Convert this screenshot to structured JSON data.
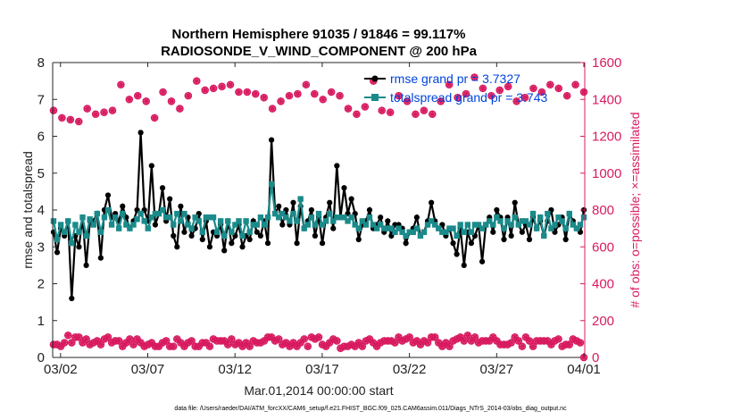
{
  "chart_data": {
    "type": "line",
    "title_line1": "Northern Hemisphere 91035 / 91846 = 99.117%",
    "title_line2": "RADIOSONDE_V_WIND_COMPONENT @ 200 hPa",
    "xlabel": "Mar.01,2014 00:00:00 start",
    "ylabel_left": "rmse and totalspread",
    "ylabel_right": "# of obs: o=possible; ×=assimilated",
    "footnote": "data file: /Users/raeder/DAI/ATM_forcXX/CAM6_setup/f.e21.FHIST_BGC.f09_025.CAM6assim.011/Diags_NTrS_2014-03/obs_diag_output.nc",
    "xlim": [
      0.55,
      31.05
    ],
    "ylim_left": [
      0,
      8
    ],
    "ylim_right": [
      0,
      1600
    ],
    "x_ticks": [
      1,
      6,
      11,
      16,
      21,
      26,
      31
    ],
    "x_tick_labels": [
      "03/02",
      "03/07",
      "03/12",
      "03/17",
      "03/22",
      "03/27",
      "04/01"
    ],
    "y_ticks_left": [
      "0",
      "1",
      "2",
      "3",
      "4",
      "5",
      "6",
      "7",
      "8"
    ],
    "y_ticks_right": [
      "0",
      "200",
      "400",
      "600",
      "800",
      "1000",
      "1200",
      "1400",
      "1600"
    ],
    "legend": {
      "rmse_label": "rmse grand pr = 3.7327",
      "spread_label": "totalspread grand pr = 3.743",
      "placement": "top-right"
    },
    "colors": {
      "rmse": "#000000",
      "spread": "#1a8a8a",
      "obs": "#d81b60",
      "legend_text": "#0044dd"
    },
    "series": [
      {
        "name": "rmse",
        "axis": "left",
        "values": [
          3.4,
          2.85,
          3.5,
          3.3,
          3.7,
          1.6,
          3.3,
          3.0,
          3.8,
          2.5,
          3.7,
          3.7,
          3.9,
          2.7,
          4.0,
          4.4,
          3.8,
          3.9,
          3.7,
          4.1,
          3.8,
          3.5,
          3.7,
          4.0,
          6.1,
          4.0,
          3.7,
          5.2,
          3.6,
          3.9,
          4.6,
          3.7,
          4.3,
          3.3,
          3.0,
          4.1,
          3.4,
          3.8,
          3.3,
          3.5,
          3.9,
          3.2,
          3.7,
          3.0,
          3.4,
          3.3,
          3.6,
          2.9,
          3.7,
          3.1,
          3.3,
          3.6,
          3.0,
          3.3,
          3.2,
          3.7,
          3.4,
          3.3,
          3.7,
          3.1,
          5.9,
          3.9,
          4.1,
          3.6,
          4.0,
          3.6,
          4.2,
          3.1,
          4.1,
          3.5,
          3.7,
          4.0,
          3.3,
          3.8,
          3.1,
          3.8,
          4.2,
          3.5,
          5.2,
          3.8,
          4.6,
          3.9,
          4.3,
          3.9,
          3.2,
          3.6,
          3.7,
          4.0,
          3.5,
          3.6,
          3.8,
          3.4,
          3.7,
          3.3,
          3.6,
          3.6,
          3.5,
          3.1,
          3.4,
          3.5,
          3.8,
          3.3,
          3.4,
          3.7,
          4.2,
          3.7,
          3.5,
          3.6,
          3.3,
          3.5,
          3.1,
          2.8,
          3.5,
          2.5,
          3.4,
          3.1,
          3.3,
          3.6,
          2.6,
          3.6,
          3.8,
          3.4,
          4.0,
          3.8,
          3.2,
          3.8,
          3.3,
          4.2,
          3.6,
          3.4,
          3.6,
          3.2,
          3.8,
          3.5,
          3.7,
          3.3,
          3.7,
          4.0,
          3.4,
          3.6,
          3.8,
          3.2,
          3.9,
          3.7,
          3.5,
          3.4,
          4.0
        ]
      },
      {
        "name": "totalspread",
        "axis": "left",
        "values": [
          3.7,
          3.2,
          3.6,
          3.4,
          3.7,
          3.1,
          3.6,
          3.4,
          3.8,
          3.3,
          3.75,
          3.6,
          3.9,
          3.4,
          3.8,
          4.0,
          3.6,
          3.8,
          3.5,
          3.9,
          3.6,
          3.5,
          3.6,
          3.75,
          3.9,
          3.7,
          3.5,
          3.8,
          3.9,
          3.9,
          4.0,
          3.8,
          3.8,
          3.6,
          3.9,
          3.7,
          3.9,
          3.6,
          3.5,
          3.8,
          3.7,
          3.4,
          3.8,
          3.8,
          3.8,
          3.4,
          3.7,
          3.3,
          3.7,
          3.4,
          3.6,
          3.7,
          3.3,
          3.7,
          3.4,
          3.6,
          3.6,
          3.8,
          3.6,
          3.8,
          4.7,
          3.9,
          3.8,
          3.9,
          3.8,
          3.7,
          3.9,
          3.7,
          4.3,
          3.5,
          3.6,
          3.8,
          3.6,
          3.9,
          3.6,
          3.7,
          3.9,
          3.7,
          3.8,
          3.8,
          3.8,
          3.7,
          3.8,
          3.6,
          3.5,
          3.7,
          3.6,
          3.8,
          3.6,
          3.5,
          3.6,
          3.5,
          3.5,
          3.5,
          3.4,
          3.5,
          3.4,
          3.3,
          3.4,
          3.4,
          3.5,
          3.3,
          3.4,
          3.6,
          3.7,
          3.6,
          3.5,
          3.4,
          3.4,
          3.5,
          3.5,
          3.3,
          3.6,
          3.4,
          3.6,
          3.4,
          3.6,
          3.6,
          3.5,
          3.6,
          3.7,
          3.6,
          3.8,
          3.7,
          3.5,
          3.7,
          3.6,
          3.8,
          3.6,
          3.7,
          3.7,
          3.6,
          3.9,
          3.5,
          3.8,
          3.3,
          3.9,
          3.5,
          3.6,
          3.8,
          3.7,
          3.5,
          3.9,
          3.6,
          3.5,
          3.6,
          3.8
        ]
      },
      {
        "name": "obs_possible_high",
        "axis": "right",
        "values": [
          1340,
          1300,
          1290,
          1280,
          1350,
          1320,
          1330,
          1340,
          1480,
          1400,
          1420,
          1390,
          1300,
          1440,
          1390,
          1350,
          1420,
          1500,
          1450,
          1460,
          1470,
          1480,
          1440,
          1440,
          1430,
          1410,
          1350,
          1390,
          1420,
          1430,
          1480,
          1430,
          1400,
          1440,
          1420,
          1350,
          1320,
          1360,
          1500,
          1340,
          1330,
          1420,
          1390,
          1320,
          1340,
          1320,
          1390,
          1480,
          1410,
          1430,
          1520,
          1460,
          1420,
          1450,
          1470,
          1390,
          1410,
          1460,
          1440,
          1480,
          1460,
          1420,
          1480,
          1440
        ]
      },
      {
        "name": "obs_possible_low",
        "axis": "right",
        "values": [
          70,
          70,
          60,
          80,
          120,
          80,
          110,
          110,
          80,
          100,
          70,
          80,
          90,
          70,
          100,
          110,
          80,
          90,
          90,
          60,
          80,
          100,
          70,
          100,
          80,
          60,
          70,
          80,
          60,
          60,
          80,
          90,
          60,
          60,
          100,
          80,
          60,
          80,
          90,
          60,
          60,
          80,
          80,
          60,
          100,
          90,
          90,
          90,
          70,
          100,
          70,
          80,
          60,
          80,
          60,
          90,
          80,
          80,
          90,
          110,
          110,
          90,
          100,
          70,
          80,
          60,
          80,
          60,
          80,
          100,
          60,
          110,
          100,
          110,
          70,
          60,
          80,
          100,
          90,
          50,
          60,
          60,
          70,
          60,
          80,
          60,
          90,
          100,
          80,
          60,
          80,
          90,
          90,
          90,
          80,
          110,
          90,
          100,
          110,
          80,
          90,
          70,
          90,
          80,
          110,
          110,
          80,
          60,
          80,
          60,
          90,
          100,
          110,
          90,
          120,
          90,
          110,
          80,
          90,
          90,
          90,
          110,
          90,
          70,
          70,
          70,
          80,
          110,
          90,
          60,
          110,
          90,
          60,
          90,
          90,
          90,
          90,
          70,
          90,
          100,
          60,
          70,
          70,
          100,
          90,
          80,
          0
        ]
      }
    ]
  }
}
